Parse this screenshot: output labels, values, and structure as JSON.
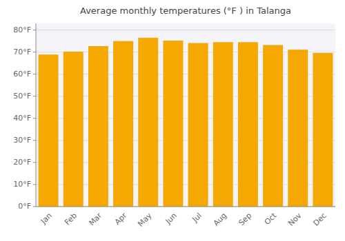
{
  "chart_data": {
    "type": "bar",
    "title": "Average monthly temperatures (°F ) in Talanga",
    "categories": [
      "Jan",
      "Feb",
      "Mar",
      "Apr",
      "May",
      "Jun",
      "Jul",
      "Aug",
      "Sep",
      "Oct",
      "Nov",
      "Dec"
    ],
    "values": [
      68.9,
      70.2,
      72.7,
      75.0,
      76.5,
      75.2,
      74.1,
      74.5,
      74.5,
      73.2,
      71.1,
      69.6
    ],
    "color": "#F5A800",
    "ylim": [
      0,
      83
    ],
    "yticks": [
      {
        "value": 0,
        "label": "0°F"
      },
      {
        "value": 10,
        "label": "10°F"
      },
      {
        "value": 20,
        "label": "20°F"
      },
      {
        "value": 30,
        "label": "30°F"
      },
      {
        "value": 40,
        "label": "40°F"
      },
      {
        "value": 50,
        "label": "50°F"
      },
      {
        "value": 60,
        "label": "60°F"
      },
      {
        "value": 70,
        "label": "70°F"
      },
      {
        "value": 80,
        "label": "80°F"
      }
    ],
    "grid": true
  }
}
